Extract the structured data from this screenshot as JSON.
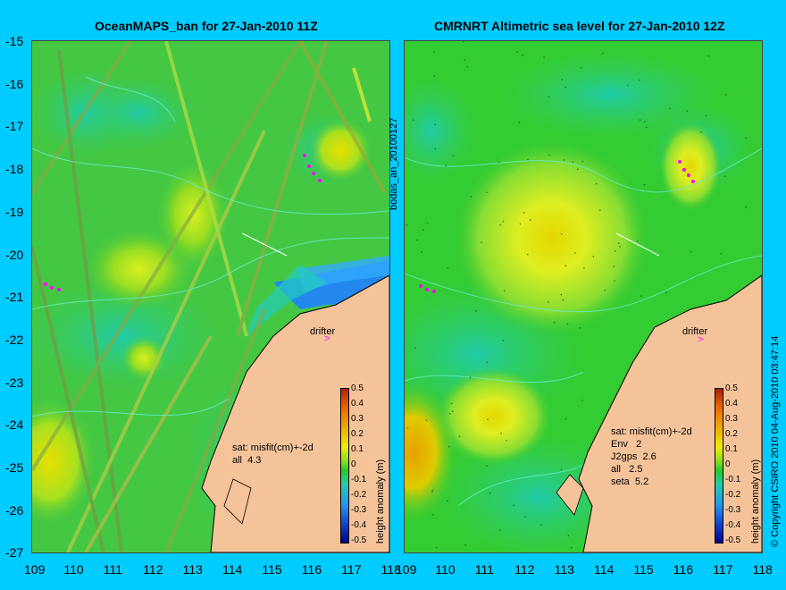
{
  "left_panel": {
    "title": "OceanMAPS_ban for 27-Jan-2010 11Z",
    "stats": "sat: misfit(cm)+-2d\nall  4.3",
    "drifter_label": "drifter",
    "colorbar_label": "height anomaly (m)"
  },
  "right_panel": {
    "title": "CMRNRT Altimetric sea level  for 27-Jan-2010 12Z",
    "stats": "sat: misfit(cm)+-2d\nEnv   2\nJ2gps  2.6\nall   2.5\nseta  5.2",
    "drifter_label": "drifter",
    "colorbar_label": "height anomaly (m)"
  },
  "side_label": "bodas_an_20100127",
  "copyright": "© Copyright CSIRO 2010   04-Aug-2010 03:47:14",
  "y_ticks": [
    "-15",
    "-16",
    "-17",
    "-18",
    "-19",
    "-20",
    "-21",
    "-22",
    "-23",
    "-24",
    "-25",
    "-26",
    "-27"
  ],
  "x_ticks": [
    "109",
    "110",
    "111",
    "112",
    "113",
    "114",
    "115",
    "116",
    "117",
    "118"
  ],
  "colorbar_ticks": [
    "0.5",
    "0.4",
    "0.3",
    "0.2",
    "0.1",
    "0",
    "-0.1",
    "-0.2",
    "-0.3",
    "-0.4",
    "-0.5"
  ],
  "colors": {
    "background": "#00ccff",
    "land": "#f5c39a",
    "ocean_base": "#33cc33"
  }
}
